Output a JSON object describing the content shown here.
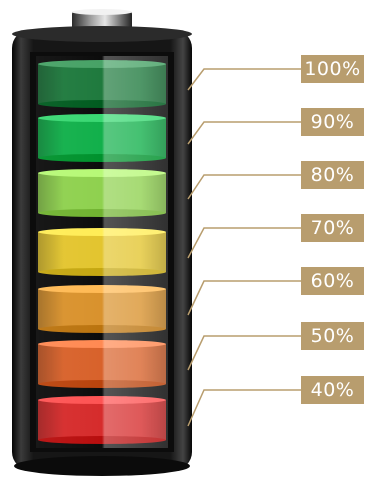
{
  "battery": {
    "levels": [
      {
        "label": "100%",
        "color": "#1f7a3e"
      },
      {
        "label": "90%",
        "color": "#12b04b"
      },
      {
        "label": "80%",
        "color": "#8fd14f"
      },
      {
        "label": "70%",
        "color": "#e3c52f"
      },
      {
        "label": "60%",
        "color": "#d9922d"
      },
      {
        "label": "50%",
        "color": "#d8622b"
      },
      {
        "label": "40%",
        "color": "#d62c2c"
      }
    ],
    "label_box_color": "#b89d6e",
    "leader_line_color": "#b89d6e",
    "casing_color": "#141414"
  }
}
